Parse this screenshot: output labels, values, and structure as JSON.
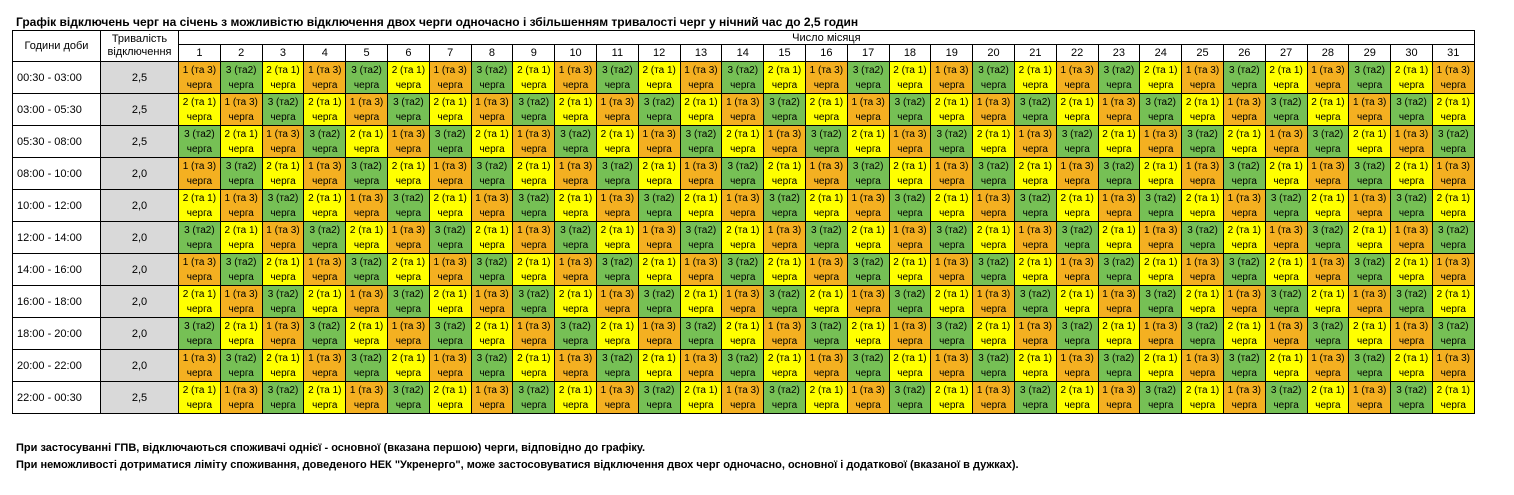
{
  "title": "Графік відключень черг на січень з можливістю відключення двох черги одночасно і збільшенням тривалості черг у нічний час до 2,5 годин",
  "header": {
    "hours_label": "Години доби",
    "duration_label": "Тривалість відключення",
    "days_label": "Число місяця",
    "days": [
      "1",
      "2",
      "3",
      "4",
      "5",
      "6",
      "7",
      "8",
      "9",
      "10",
      "11",
      "12",
      "13",
      "14",
      "15",
      "16",
      "17",
      "18",
      "19",
      "20",
      "21",
      "22",
      "23",
      "24",
      "25",
      "26",
      "27",
      "28",
      "29",
      "30",
      "31"
    ]
  },
  "queue_word": "черга",
  "patterns": {
    "A": [
      0,
      1,
      2,
      0,
      1,
      2,
      0,
      1,
      2,
      0,
      1,
      2,
      0,
      1,
      2,
      0,
      1,
      2,
      0,
      1,
      2,
      0,
      1,
      2,
      0,
      1,
      2,
      0,
      1,
      2,
      0
    ],
    "B": [
      2,
      0,
      1,
      2,
      0,
      1,
      2,
      0,
      1,
      2,
      0,
      1,
      2,
      0,
      1,
      2,
      0,
      1,
      2,
      0,
      1,
      2,
      0,
      1,
      2,
      0,
      1,
      2,
      0,
      1,
      2
    ],
    "C": [
      1,
      2,
      0,
      1,
      2,
      0,
      1,
      2,
      0,
      1,
      2,
      0,
      1,
      2,
      0,
      1,
      2,
      0,
      1,
      2,
      0,
      1,
      2,
      0,
      1,
      2,
      0,
      1,
      2,
      0,
      1
    ]
  },
  "queues": [
    {
      "label": "1 (та 3)",
      "color": "#f4b021"
    },
    {
      "label": "3 (та2)",
      "color": "#76c055"
    },
    {
      "label": "2 (та 1)",
      "color": "#ffff00"
    }
  ],
  "rows": [
    {
      "time": "00:30 - 03:00",
      "duration": "2,5",
      "pattern": "A"
    },
    {
      "time": "03:00 - 05:30",
      "duration": "2,5",
      "pattern": "B"
    },
    {
      "time": "05:30 - 08:00",
      "duration": "2,5",
      "pattern": "C"
    },
    {
      "time": "08:00 - 10:00",
      "duration": "2,0",
      "pattern": "A"
    },
    {
      "time": "10:00 - 12:00",
      "duration": "2,0",
      "pattern": "B"
    },
    {
      "time": "12:00 - 14:00",
      "duration": "2,0",
      "pattern": "C"
    },
    {
      "time": "14:00 - 16:00",
      "duration": "2,0",
      "pattern": "A"
    },
    {
      "time": "16:00 - 18:00",
      "duration": "2,0",
      "pattern": "B"
    },
    {
      "time": "18:00 - 20:00",
      "duration": "2,0",
      "pattern": "C"
    },
    {
      "time": "20:00 - 22:00",
      "duration": "2,0",
      "pattern": "A"
    },
    {
      "time": "22:00 - 00:30",
      "duration": "2,5",
      "pattern": "B"
    }
  ],
  "notes": [
    "При застосуванні ГПВ, відключаються споживачі однієї - основної (вказана першою) черги, відповідно до графіку.",
    "При неможливості дотриматися ліміту споживання, доведеного НЕК \"Укренерго\", може застосовуватися відключення двох черг одночасно, основної і додаткової (вказаної в дужках)."
  ]
}
